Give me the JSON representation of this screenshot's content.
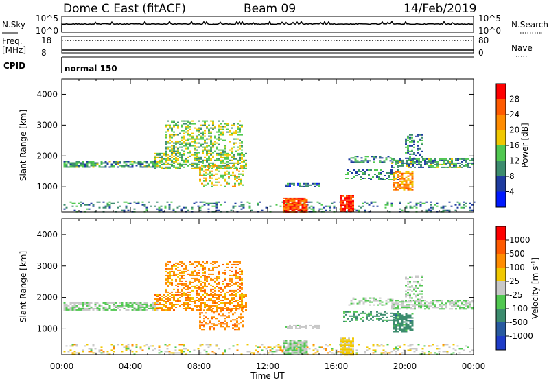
{
  "header": {
    "station": "Dome C East (fitACF)",
    "beam": "Beam 09",
    "date": "14/Feb/2019"
  },
  "strip": {
    "nsky_label": "N.Sky",
    "nsky_ticks": [
      "10^5",
      "10^0"
    ],
    "nsearch_label": "N.Search",
    "nsearch_ticks": [
      "10^5",
      "10^0"
    ],
    "freq_label": "Freq.",
    "freq_unit": "[MHz]",
    "freq_ticks": [
      "18",
      "8"
    ],
    "nave_label": "Nave",
    "nave_ticks": [
      "80",
      "0"
    ],
    "cpid_label": "CPID",
    "cpid_value": "normal 150"
  },
  "chart_data": [
    {
      "type": "heatmap",
      "ylabel": "Slant Range [km]",
      "ylim": [
        180,
        4500
      ],
      "yticks": [
        1000,
        2000,
        3000,
        4000
      ],
      "xlim": [
        0,
        24
      ],
      "colorbar_label": "Power [dB]",
      "colorbar_ticks": [
        "4",
        "8",
        "12",
        "16",
        "20",
        "24",
        "28"
      ],
      "colors": [
        "#0019ff",
        "#1e3ca0",
        "#3c8c6e",
        "#50c850",
        "#f0c800",
        "#ff8c00",
        "#ff5a00",
        "#ff0000"
      ]
    },
    {
      "type": "heatmap",
      "ylabel": "Slant Range [km]",
      "xlabel": "Time UT",
      "ylim": [
        180,
        4500
      ],
      "yticks": [
        1000,
        2000,
        3000,
        4000
      ],
      "xlim": [
        0,
        24
      ],
      "xticks": [
        "00:00",
        "04:00",
        "08:00",
        "12:00",
        "16:00",
        "20:00",
        "00:00"
      ],
      "colorbar_label": "Velocity [m s",
      "colorbar_unit_sup": "-1",
      "colorbar_unit_end": "]",
      "colorbar_ticks": [
        "1000",
        "500",
        "100",
        "25",
        "-25",
        "-100",
        "-500",
        "-1000"
      ],
      "colors": [
        "#1e3cc8",
        "#285aa0",
        "#3c8c6e",
        "#50c850",
        "#c8c8c8",
        "#f0c800",
        "#ff8c00",
        "#ff5a00",
        "#ff0000"
      ]
    }
  ]
}
